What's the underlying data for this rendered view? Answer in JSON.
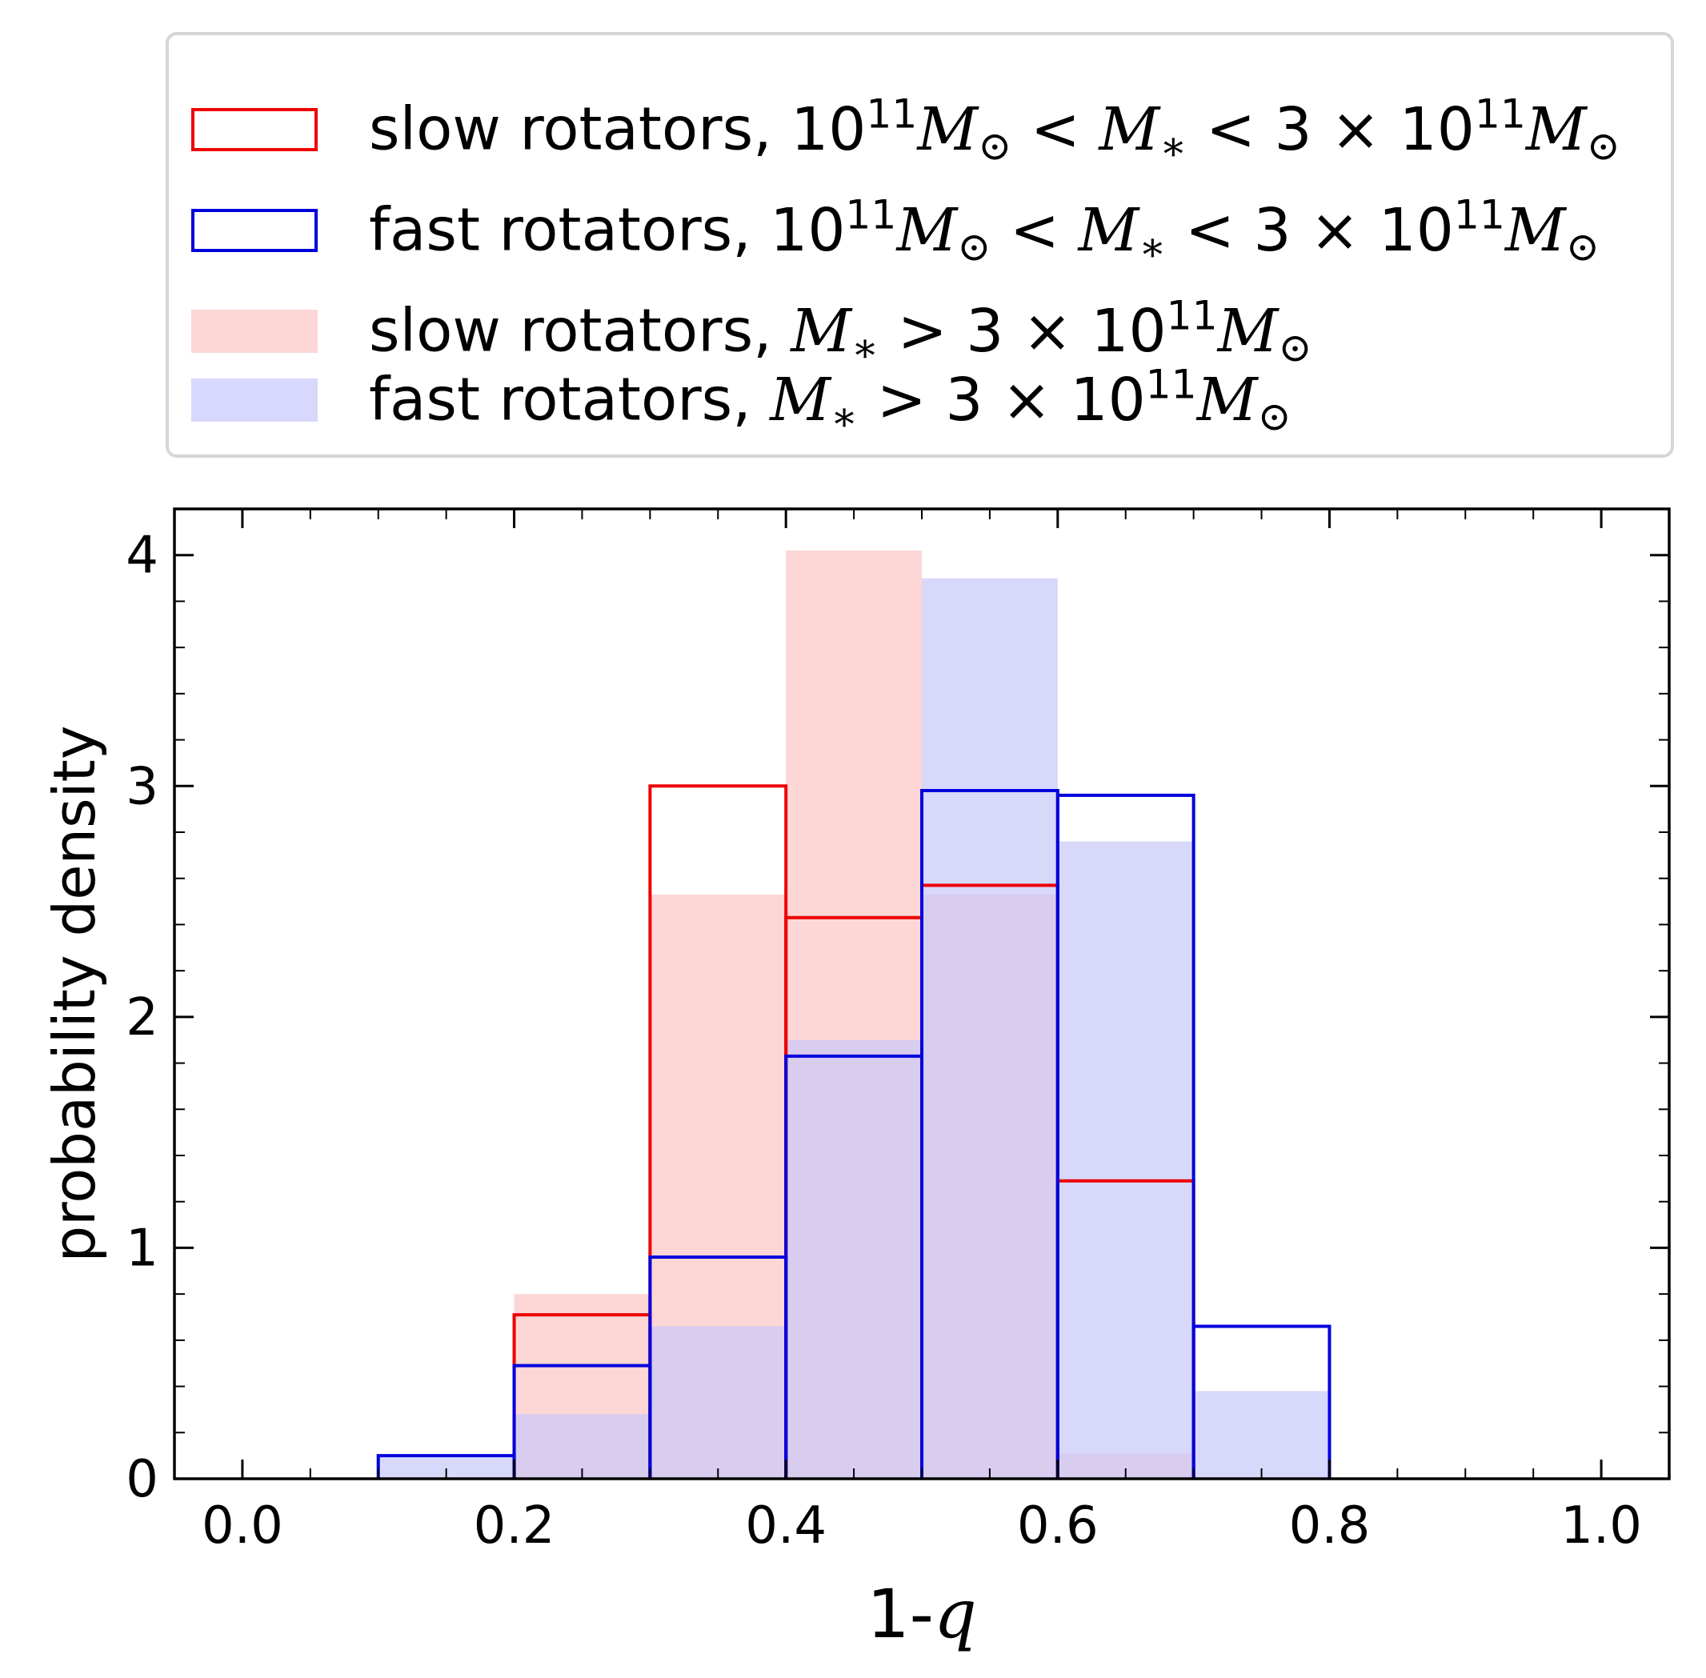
{
  "chart_data": {
    "type": "bar",
    "subtype": "histogram",
    "xlabel_prefix": "1-",
    "xlabel_var": "q",
    "ylabel": "probability density",
    "xlim": [
      -0.05,
      1.05
    ],
    "ylim": [
      0,
      4.2
    ],
    "xticks": [
      0.0,
      0.2,
      0.4,
      0.6,
      0.8,
      1.0
    ],
    "xtick_labels": [
      "0.0",
      "0.2",
      "0.4",
      "0.6",
      "0.8",
      "1.0"
    ],
    "yticks": [
      0,
      1,
      2,
      3,
      4
    ],
    "ytick_labels": [
      "0",
      "1",
      "2",
      "3",
      "4"
    ],
    "bin_edges": [
      0.0,
      0.1,
      0.2,
      0.3,
      0.4,
      0.5,
      0.6,
      0.7,
      0.8,
      0.9,
      1.0
    ],
    "legend_position": "top, above axes",
    "series": [
      {
        "name": "slow rotators, M* > 3×10^11 M☉",
        "style": "filled",
        "color": "#fdd6d6",
        "values": [
          0,
          0,
          0.8,
          2.53,
          4.02,
          2.53,
          0.11,
          0,
          0,
          0
        ]
      },
      {
        "name": "fast rotators, M* > 3×10^11 M☉",
        "style": "filled",
        "color": "#c8c8fa",
        "opacity": 0.7,
        "values": [
          0,
          0.1,
          0.28,
          0.66,
          1.9,
          3.9,
          2.76,
          0.38,
          0,
          0
        ]
      },
      {
        "name": "slow rotators, 10^11 M☉ < M* < 3×10^11 M☉",
        "style": "step",
        "color": "#ee0000",
        "values": [
          0,
          0,
          0.71,
          3.0,
          2.43,
          2.57,
          1.29,
          0,
          0,
          0
        ]
      },
      {
        "name": "fast rotators, 10^11 M☉ < M* < 3×10^11 M☉",
        "style": "step",
        "color": "#0000dd",
        "values": [
          0,
          0.1,
          0.49,
          0.96,
          1.83,
          2.98,
          2.96,
          0.66,
          0,
          0
        ]
      }
    ]
  },
  "legend": {
    "rows": [
      {
        "series": "slow rotators, 10^11 M☉ < M* < 3×10^11 M☉",
        "prefix": "slow rotators,",
        "kind": "range"
      },
      {
        "series": "fast rotators, 10^11 M☉ < M* < 3×10^11 M☉",
        "prefix": "fast rotators,",
        "kind": "range"
      },
      {
        "series": "slow rotators, M* > 3×10^11 M☉",
        "prefix": "slow rotators,",
        "kind": "above"
      },
      {
        "series": "fast rotators, M* > 3×10^11 M☉",
        "prefix": "fast rotators,",
        "kind": "above"
      }
    ],
    "range_text": {
      "ten": "10",
      "exp": "11",
      "M": "M",
      "sun": "⊙",
      "lt": "<",
      "star": "∗",
      "three": "3",
      "times": "×"
    },
    "above_text": {
      "M": "M",
      "star": "∗",
      "gt": ">",
      "three": "3",
      "times": "×",
      "ten": "10",
      "exp": "11",
      "sun": "⊙"
    }
  }
}
